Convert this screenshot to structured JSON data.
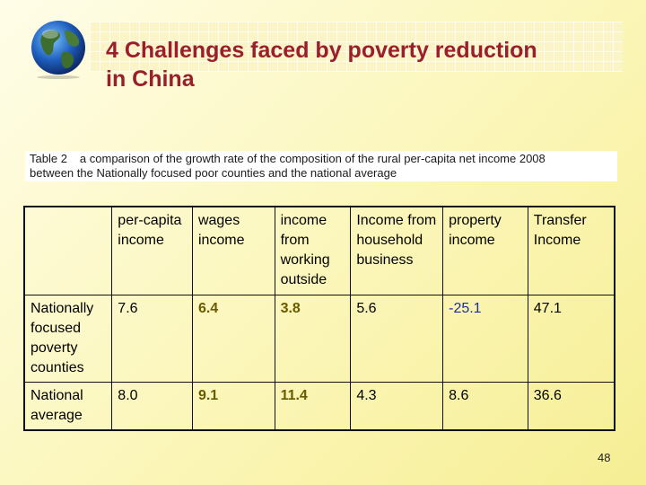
{
  "slide": {
    "title_line1": "4 Challenges faced by poverty reduction",
    "title_line2": "in China",
    "page_number": "48"
  },
  "caption": {
    "label": "Table 2",
    "text_line1": "a comparison of the growth rate of the composition of the rural per-capita net income 2008",
    "text_line2": "between the Nationally focused poor counties and the national average"
  },
  "table": {
    "headers": [
      "",
      "per-capita income",
      "wages income",
      "income from working outside",
      "Income from household business",
      "property income",
      "Transfer Income"
    ],
    "rows": [
      {
        "label": "Nationally focused poverty counties",
        "values": [
          "7.6",
          "6.4",
          "3.8",
          "5.6",
          "-25.1",
          "47.1"
        ]
      },
      {
        "label": "National average",
        "values": [
          "8.0",
          "9.1",
          "11.4",
          "4.3",
          "8.6",
          "36.6"
        ]
      }
    ]
  },
  "colors": {
    "title": "#9a1f2b",
    "highlight_text": "#6a5a00",
    "negative_text": "#1a2f9e"
  },
  "icons": {
    "logo": "globe-icon"
  }
}
